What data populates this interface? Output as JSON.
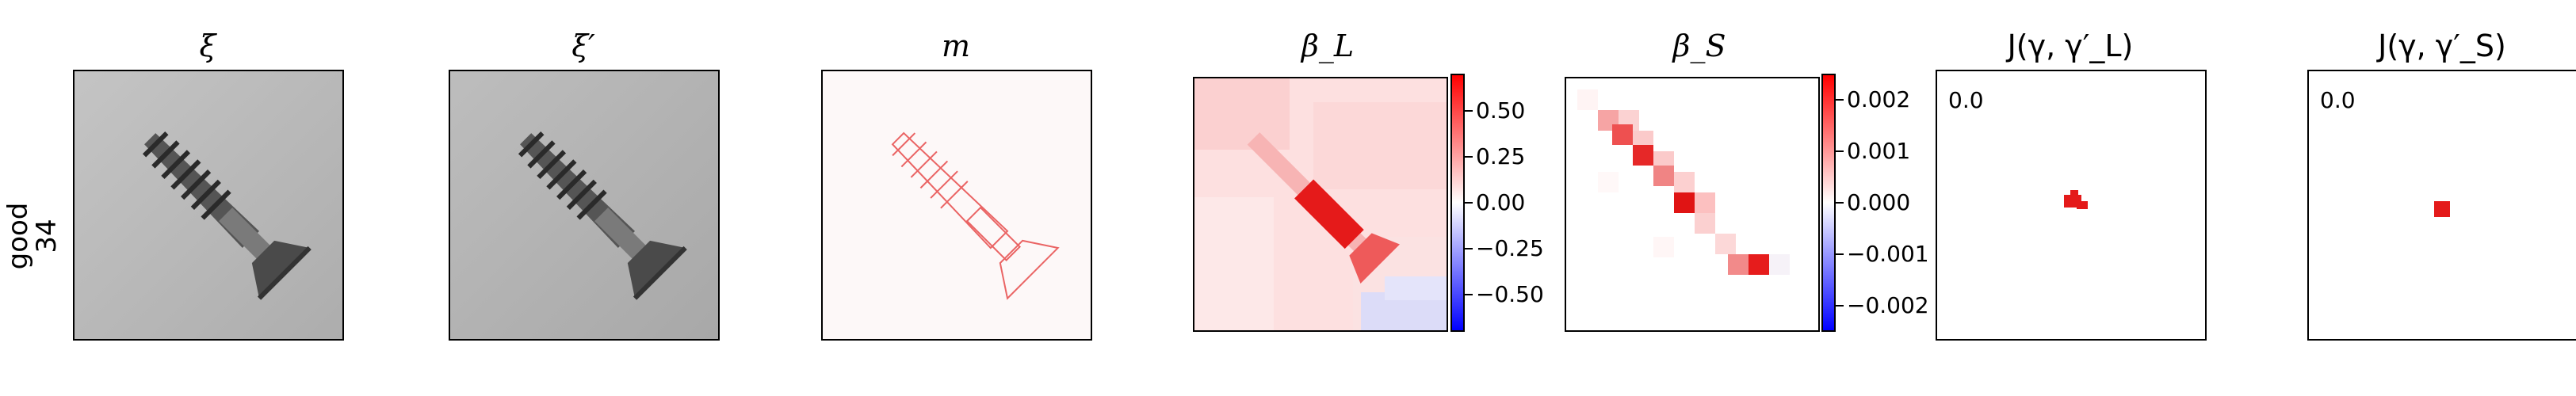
{
  "row_label": {
    "line1": "good",
    "line2": "34"
  },
  "panels": [
    {
      "title": "ξ"
    },
    {
      "title": "ξ′"
    },
    {
      "title": "m"
    },
    {
      "title": "β_L"
    },
    {
      "title": "β_S"
    },
    {
      "title": "J(γ, γ′_L)",
      "corner_value": "0.0"
    },
    {
      "title": "J(γ, γ′_S)",
      "corner_value": "0.0"
    }
  ],
  "colorbars": {
    "beta_L": {
      "ticks": [
        "0.50",
        "0.25",
        "0.00",
        "−0.25",
        "−0.50"
      ],
      "range": [
        -0.7,
        0.7
      ]
    },
    "beta_S": {
      "ticks": [
        "0.002",
        "0.001",
        "0.000",
        "−0.001",
        "−0.002"
      ],
      "range": [
        -0.0025,
        0.0025
      ]
    }
  },
  "colors": {
    "positive": "#ff0000",
    "negative": "#0000ff",
    "zero": "#ffffff",
    "grey_background": "#b8b8b8"
  }
}
